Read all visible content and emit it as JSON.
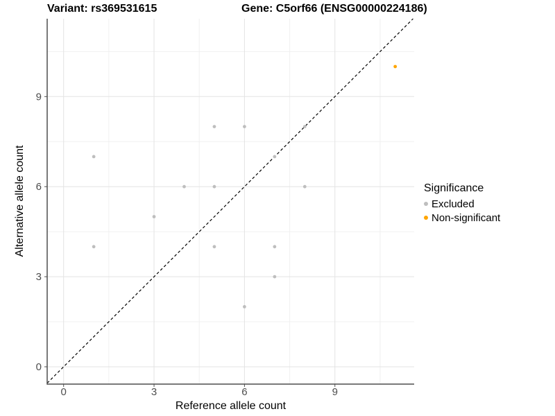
{
  "header": {
    "variant_title": "Variant: rs369531615",
    "gene_title": "Gene: C5orf66 (ENSG00000224186)"
  },
  "chart_data": {
    "type": "scatter",
    "title_left": "Variant: rs369531615",
    "title_right": "Gene: C5orf66 (ENSG00000224186)",
    "xlabel": "Reference allele count",
    "ylabel": "Alternative allele count",
    "xlim": [
      -0.55,
      11.63
    ],
    "ylim": [
      -0.58,
      11.6
    ],
    "x_ticks": [
      0,
      3,
      6,
      9
    ],
    "y_ticks": [
      0,
      3,
      6,
      9
    ],
    "x_minor_ticks": [
      1.5,
      4.5,
      7.5,
      10.5
    ],
    "y_minor_ticks": [
      1.5,
      4.5,
      7.5,
      10.5
    ],
    "grid": true,
    "reference_line": {
      "type": "identity",
      "style": "dashed",
      "color": "#000000"
    },
    "series": [
      {
        "name": "Excluded",
        "color": "#BEBEBE",
        "points": [
          [
            1,
            4
          ],
          [
            1,
            7
          ],
          [
            3,
            5
          ],
          [
            4,
            6
          ],
          [
            5,
            4
          ],
          [
            5,
            6
          ],
          [
            5,
            8
          ],
          [
            6,
            2
          ],
          [
            6,
            8
          ],
          [
            7,
            3
          ],
          [
            7,
            4
          ],
          [
            7,
            7
          ],
          [
            8,
            6
          ],
          [
            8,
            8
          ]
        ]
      },
      {
        "name": "Non-significant",
        "color": "#FFA500",
        "points": [
          [
            11,
            10
          ]
        ]
      }
    ],
    "legend": {
      "title": "Significance",
      "position": "right"
    }
  }
}
